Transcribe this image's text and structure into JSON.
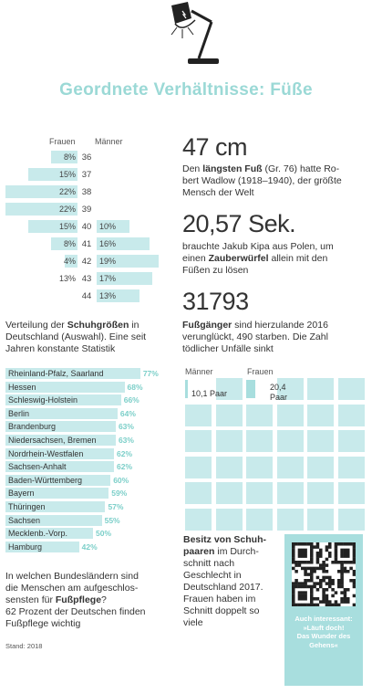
{
  "title": "Geordnete Verhältnisse: Füße",
  "colors": {
    "accent": "#9bd9d6",
    "bar_light": "#c8eaeb",
    "bar_dark": "#a8dede",
    "pct_text": "#7ccfc9"
  },
  "shoe_sizes": {
    "header_women": "Frauen",
    "header_men": "Männer",
    "rows": [
      {
        "size": "36",
        "women": "8%",
        "men": ""
      },
      {
        "size": "37",
        "women": "15%",
        "men": ""
      },
      {
        "size": "38",
        "women": "22%",
        "men": ""
      },
      {
        "size": "39",
        "women": "22%",
        "men": ""
      },
      {
        "size": "40",
        "women": "15%",
        "men": "10%"
      },
      {
        "size": "41",
        "women": "8%",
        "men": "16%"
      },
      {
        "size": "42",
        "women": "4%",
        "men": "19%"
      },
      {
        "size": "43",
        "women": "13%",
        "men": "17%"
      },
      {
        "size": "44",
        "women": "",
        "men": "13%"
      }
    ],
    "caption_pre": "Verteilung der ",
    "caption_bold": "Schuhgrößen",
    "caption_post": " in Deutschland (Auswahl). Eine seit Jahren konstante Statistik"
  },
  "facts": {
    "f1_big": "47 cm",
    "f1_l1_pre": "Den ",
    "f1_l1_bold": "längsten Fuß",
    "f1_l1_post": " (Gr. 76) hatte Ro-",
    "f1_l2": "bert Wadlow (1918–1940), der größte",
    "f1_l3": "Mensch der Welt",
    "f2_big": "20,57 Sek.",
    "f2_l1": "brauchte Jakub Kipa aus Polen, um",
    "f2_l2_pre": "einen ",
    "f2_l2_bold": "Zauberwürfel",
    "f2_l2_post": " allein mit den",
    "f2_l3": "Füßen zu lösen",
    "f3_big": "31793",
    "f3_l1_bold": "Fußgänger",
    "f3_l1_post": " sind hierzulande 2016",
    "f3_l2": "verunglückt, 490 starben. Die Zahl",
    "f3_l3": "tödlicher Unfälle sinkt"
  },
  "pairs": {
    "header_men": "Männer",
    "header_women": "Frauen",
    "men_value": "10,1 Paar",
    "women_value_1": "20,4",
    "women_value_2": "Paar",
    "caption_l1": "Besitz von Schuh-",
    "caption_l2_bold": "paaren",
    "caption_l2_post": " im Durch-",
    "caption_l3": "schnitt nach",
    "caption_l4": "Geschlecht in",
    "caption_l5": "Deutschland 2017.",
    "caption_l6": "Frauen haben im",
    "caption_l7": "Schnitt doppelt so",
    "caption_l8": "viele"
  },
  "states": {
    "caption_l1": "In welchen Bundesländern sind",
    "caption_l2": "die Menschen am aufgeschlos-",
    "caption_l3_pre": "sensten für ",
    "caption_l3_bold": "Fußpflege",
    "caption_l3_post": "?",
    "caption_l4": "62 Prozent der Deutschen finden",
    "caption_l5": "Fußpflege wichtig",
    "source": "Stand: 2018"
  },
  "qr": {
    "text_l1": "Auch interessant:",
    "text_l2": "»Läuft doch!",
    "text_l3": "Das Wunder des",
    "text_l4": "Gehens«"
  },
  "chart_data": [
    {
      "type": "bar",
      "title": "",
      "categories": [
        "36",
        "37",
        "38",
        "39",
        "40",
        "41",
        "42",
        "43",
        "44"
      ],
      "series": [
        {
          "name": "Frauen",
          "values": [
            8,
            15,
            22,
            22,
            15,
            8,
            4,
            13,
            null
          ]
        },
        {
          "name": "Männer",
          "values": [
            null,
            null,
            null,
            null,
            10,
            16,
            19,
            17,
            13
          ]
        }
      ],
      "unit": "%"
    },
    {
      "type": "bar",
      "title": "",
      "categories": [
        "Rheinland-Pfalz, Saarland",
        "Hessen",
        "Schleswig-Holstein",
        "Berlin",
        "Brandenburg",
        "Niedersachsen, Bremen",
        "Nordrhein-Westfalen",
        "Sachsen-Anhalt",
        "Baden-Württemberg",
        "Bayern",
        "Thüringen",
        "Sachsen",
        "Mecklenb.-Vorp.",
        "Hamburg"
      ],
      "values": [
        77,
        68,
        66,
        64,
        63,
        63,
        62,
        62,
        60,
        59,
        57,
        55,
        50,
        42
      ],
      "labels": [
        "77%",
        "68%",
        "66%",
        "64%",
        "63%",
        "63%",
        "62%",
        "62%",
        "60%",
        "59%",
        "57%",
        "55%",
        "50%",
        "42%"
      ]
    },
    {
      "type": "bar",
      "title": "",
      "categories": [
        "Männer",
        "Frauen"
      ],
      "values": [
        10.1,
        20.4
      ],
      "unit": "Paar"
    }
  ]
}
